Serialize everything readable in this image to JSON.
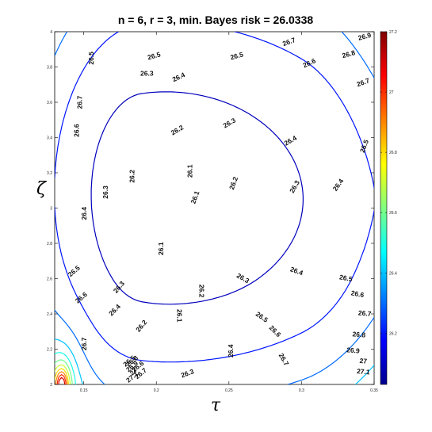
{
  "chart_data": {
    "type": "contour",
    "title": "n = 6, r = 3, min. Bayes risk = 26.0338",
    "xlabel": "τ",
    "ylabel": "ζ",
    "xlim": [
      0.13,
      0.35
    ],
    "ylim": [
      2,
      4
    ],
    "x_ticks": [
      "0.15",
      "0.2",
      "0.25",
      "0.3",
      "0.35"
    ],
    "x_tick_values": [
      0.15,
      0.2,
      0.25,
      0.3,
      0.35
    ],
    "y_ticks": [
      "2",
      "2.2",
      "2.4",
      "2.6",
      "2.8",
      "3",
      "3.2",
      "3.4",
      "3.6",
      "3.8",
      "4"
    ],
    "y_tick_values": [
      2,
      2.2,
      2.4,
      2.6,
      2.8,
      3,
      3.2,
      3.4,
      3.6,
      3.8,
      4
    ],
    "colorbar": {
      "range": [
        26.03,
        27.2
      ],
      "ticks": [
        "26.2",
        "26.4",
        "26.6",
        "26.8",
        "27",
        "27.2"
      ],
      "tick_values": [
        26.2,
        26.4,
        26.6,
        26.8,
        27,
        27.2
      ]
    },
    "contour_levels": [
      26.1,
      26.2,
      26.3,
      26.4,
      26.5,
      26.6,
      26.7,
      26.8,
      26.9,
      27,
      27.1
    ],
    "contour_labels": [
      {
        "text": "26.1",
        "tau": 0.2235,
        "zeta": 3.21,
        "angle": 90
      },
      {
        "text": "26.1",
        "tau": 0.227,
        "zeta": 3.06,
        "angle": 70
      },
      {
        "text": "26.1",
        "tau": 0.2035,
        "zeta": 2.77,
        "angle": 90
      },
      {
        "text": "26.1",
        "tau": 0.2155,
        "zeta": 2.39,
        "angle": -90
      },
      {
        "text": "26.2",
        "tau": 0.2145,
        "zeta": 3.44,
        "angle": 30
      },
      {
        "text": "26.2",
        "tau": 0.1835,
        "zeta": 3.18,
        "angle": 90
      },
      {
        "text": "26.2",
        "tau": 0.2535,
        "zeta": 3.14,
        "angle": 70
      },
      {
        "text": "26.2",
        "tau": 0.2307,
        "zeta": 2.53,
        "angle": -90
      },
      {
        "text": "26.2",
        "tau": 0.19,
        "zeta": 2.33,
        "angle": 50
      },
      {
        "text": "26.3",
        "tau": 0.1935,
        "zeta": 3.76,
        "angle": 0
      },
      {
        "text": "26.3",
        "tau": 0.2505,
        "zeta": 3.48,
        "angle": 30
      },
      {
        "text": "26.3",
        "tau": 0.1655,
        "zeta": 3.09,
        "angle": 90
      },
      {
        "text": "26.3",
        "tau": 0.2955,
        "zeta": 3.12,
        "angle": 60
      },
      {
        "text": "26.3",
        "tau": 0.2595,
        "zeta": 2.6,
        "angle": -30
      },
      {
        "text": "26.3",
        "tau": 0.1745,
        "zeta": 2.55,
        "angle": 50
      },
      {
        "text": "26.3",
        "tau": 0.2215,
        "zeta": 2.06,
        "angle": 20
      },
      {
        "text": "26.4",
        "tau": 0.2155,
        "zeta": 3.74,
        "angle": 25
      },
      {
        "text": "26.4",
        "tau": 0.2925,
        "zeta": 3.38,
        "angle": 30
      },
      {
        "text": "26.4",
        "tau": 0.1505,
        "zeta": 2.97,
        "angle": 90
      },
      {
        "text": "26.4",
        "tau": 0.3255,
        "zeta": 3.13,
        "angle": 55
      },
      {
        "text": "26.4",
        "tau": 0.2965,
        "zeta": 2.64,
        "angle": -20
      },
      {
        "text": "26.4",
        "tau": 0.1715,
        "zeta": 2.42,
        "angle": 45
      },
      {
        "text": "26.4",
        "tau": 0.2517,
        "zeta": 2.19,
        "angle": 90
      },
      {
        "text": "26.5",
        "tau": 0.1555,
        "zeta": 3.85,
        "angle": 90
      },
      {
        "text": "26.5",
        "tau": 0.1985,
        "zeta": 3.86,
        "angle": 15
      },
      {
        "text": "26.5",
        "tau": 0.2555,
        "zeta": 3.86,
        "angle": 15
      },
      {
        "text": "26.5",
        "tau": 0.3435,
        "zeta": 3.35,
        "angle": 70
      },
      {
        "text": "26.5",
        "tau": 0.1435,
        "zeta": 2.64,
        "angle": 40
      },
      {
        "text": "26.5",
        "tau": 0.3305,
        "zeta": 2.6,
        "angle": -10
      },
      {
        "text": "26.5",
        "tau": 0.2725,
        "zeta": 2.38,
        "angle": -35
      },
      {
        "text": "26.5",
        "tau": 0.1815,
        "zeta": 2.13,
        "angle": 40
      },
      {
        "text": "26.6",
        "tau": 0.1455,
        "zeta": 3.44,
        "angle": 90
      },
      {
        "text": "26.6",
        "tau": 0.3055,
        "zeta": 3.82,
        "angle": 25
      },
      {
        "text": "26.6",
        "tau": 0.1485,
        "zeta": 2.49,
        "angle": 40
      },
      {
        "text": "26.6",
        "tau": 0.3385,
        "zeta": 2.51,
        "angle": -10
      },
      {
        "text": "26.6",
        "tau": 0.2815,
        "zeta": 2.3,
        "angle": -45
      },
      {
        "text": "26.6",
        "tau": 0.1875,
        "zeta": 2.1,
        "angle": 40
      },
      {
        "text": "26.7",
        "tau": 0.1475,
        "zeta": 3.6,
        "angle": 90
      },
      {
        "text": "26.7",
        "tau": 0.2915,
        "zeta": 3.94,
        "angle": 20
      },
      {
        "text": "26.7",
        "tau": 0.3425,
        "zeta": 3.71,
        "angle": 20
      },
      {
        "text": "26.7",
        "tau": 0.1505,
        "zeta": 2.23,
        "angle": 90
      },
      {
        "text": "26.7",
        "tau": 0.3435,
        "zeta": 2.4,
        "angle": -5
      },
      {
        "text": "26.7",
        "tau": 0.2875,
        "zeta": 2.14,
        "angle": -60
      },
      {
        "text": "26.7",
        "tau": 0.1895,
        "zeta": 2.06,
        "angle": 40
      },
      {
        "text": "26.8",
        "tau": 0.3325,
        "zeta": 3.87,
        "angle": 15
      },
      {
        "text": "26.8",
        "tau": 0.3395,
        "zeta": 2.28,
        "angle": -5
      },
      {
        "text": "26.8",
        "tau": 0.1835,
        "zeta": 2.13,
        "angle": 40
      },
      {
        "text": "26.9",
        "tau": 0.3435,
        "zeta": 3.97,
        "angle": 15
      },
      {
        "text": "26.9",
        "tau": 0.3355,
        "zeta": 2.19,
        "angle": -5
      },
      {
        "text": "26.9",
        "tau": 0.1835,
        "zeta": 2.1,
        "angle": 40
      },
      {
        "text": "27",
        "tau": 0.3425,
        "zeta": 2.13,
        "angle": -5
      },
      {
        "text": "27",
        "tau": 0.1845,
        "zeta": 2.07,
        "angle": 40
      },
      {
        "text": "27.1",
        "tau": 0.3425,
        "zeta": 2.07,
        "angle": -5
      },
      {
        "text": "27.1",
        "tau": 0.1835,
        "zeta": 2.04,
        "angle": 40
      }
    ],
    "grid": false,
    "colormap": "jet"
  }
}
